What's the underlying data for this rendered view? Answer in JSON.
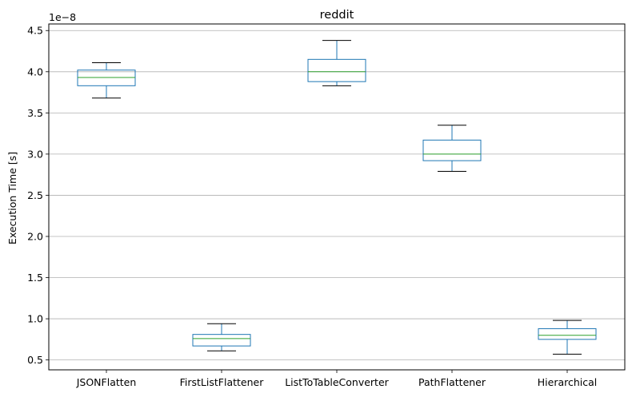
{
  "chart_data": {
    "type": "box",
    "title": "reddit",
    "xlabel": "",
    "ylabel": "Execution Time [s]",
    "y_offset_label": "1e−8",
    "ylim": [
      0.38,
      4.58
    ],
    "yticks": [
      0.5,
      1.0,
      1.5,
      2.0,
      2.5,
      3.0,
      3.5,
      4.0,
      4.5
    ],
    "ytick_labels": [
      "0.5",
      "1.0",
      "1.5",
      "2.0",
      "2.5",
      "3.0",
      "3.5",
      "4.0",
      "4.5"
    ],
    "grid": "y",
    "categories": [
      "JSONFlatten",
      "FirstListFlattener",
      "ListToTableConverter",
      "PathFlattener",
      "Hierarchical"
    ],
    "boxes": [
      {
        "whisker_low": 3.68,
        "q1": 3.83,
        "median": 3.93,
        "q3": 4.02,
        "whisker_high": 4.11
      },
      {
        "whisker_low": 0.61,
        "q1": 0.67,
        "median": 0.76,
        "q3": 0.81,
        "whisker_high": 0.94
      },
      {
        "whisker_low": 3.83,
        "q1": 3.88,
        "median": 4.0,
        "q3": 4.15,
        "whisker_high": 4.38
      },
      {
        "whisker_low": 2.79,
        "q1": 2.92,
        "median": 3.0,
        "q3": 3.17,
        "whisker_high": 3.35
      },
      {
        "whisker_low": 0.57,
        "q1": 0.75,
        "median": 0.8,
        "q3": 0.88,
        "whisker_high": 0.98
      }
    ],
    "colors": {
      "box": "#1f77b4",
      "median": "#2ca02c",
      "whisker": "#1f77b4",
      "cap": "#000000",
      "grid": "#b0b0b0"
    }
  }
}
